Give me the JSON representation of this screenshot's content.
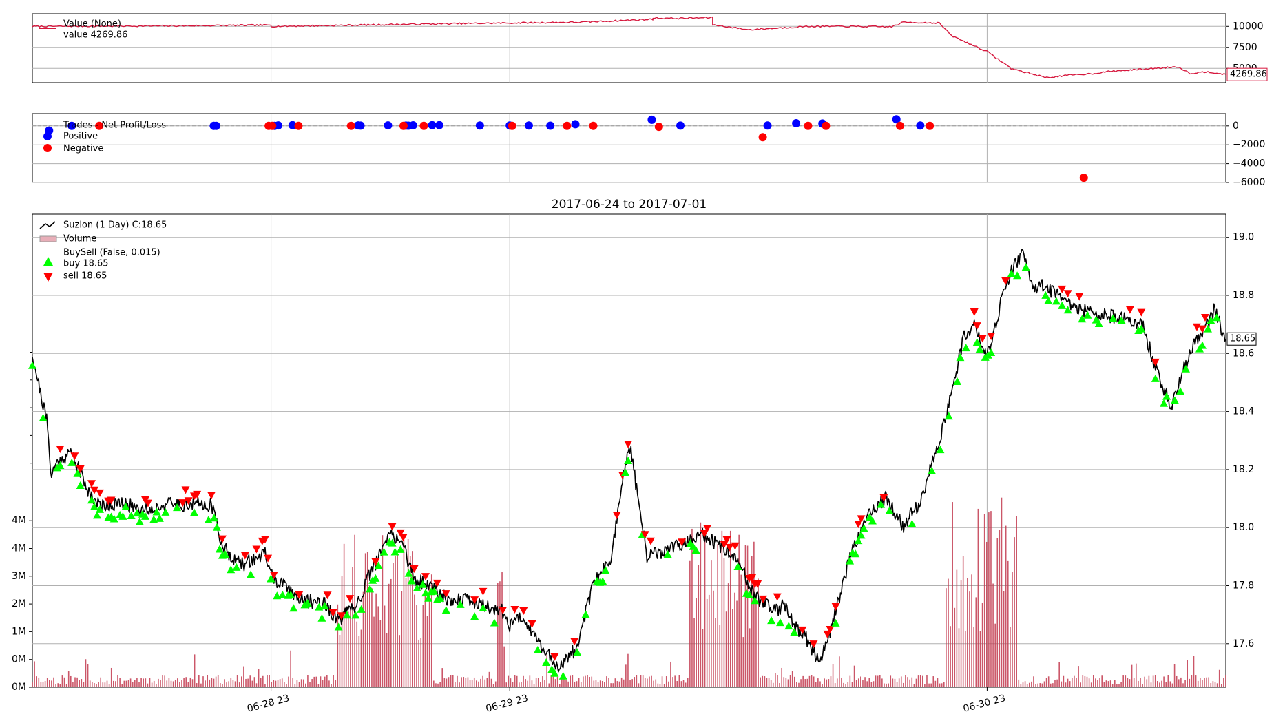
{
  "chart_data": [
    {
      "type": "line",
      "panel": "value",
      "legend": [
        {
          "label": "Value (None)",
          "color": "#d6173d"
        },
        {
          "label": "value 4269.86"
        }
      ],
      "ylim": [
        3300,
        11500
      ],
      "y_ticks": [
        10000,
        7500,
        5000
      ],
      "y_tick_labels": [
        "10000",
        "7500",
        "5000"
      ],
      "last_value_label": "4269.86",
      "grid": true,
      "series": [
        {
          "name": "Value (None)",
          "color": "#d6173d",
          "x": [
            0.0,
            0.1,
            0.2,
            0.2,
            0.34,
            0.4,
            0.46,
            0.52,
            0.52,
            0.54,
            0.57,
            0.57,
            0.6,
            0.65,
            0.68,
            0.72,
            0.73,
            0.76,
            0.77,
            0.8,
            0.82,
            0.83,
            0.85,
            0.87,
            0.89,
            0.9,
            0.92,
            0.93,
            0.96,
            0.97,
            0.985,
            1.0
          ],
          "y": [
            10000,
            10050,
            10150,
            10000,
            10300,
            10400,
            10500,
            10850,
            11000,
            10950,
            11050,
            10200,
            9600,
            10000,
            10000,
            9950,
            10500,
            10400,
            8900,
            7000,
            5000,
            4600,
            3900,
            4200,
            4400,
            4600,
            4800,
            4900,
            5200,
            4400,
            4600,
            4269.86
          ]
        }
      ]
    },
    {
      "type": "scatter",
      "panel": "trades",
      "legend": [
        {
          "label": "Trades - Net Profit/Loss"
        },
        {
          "label": "Positive",
          "color": "#0000ff"
        },
        {
          "label": "Negative",
          "color": "#ff0000"
        }
      ],
      "ylim": [
        -6000,
        1300
      ],
      "y_ticks": [
        0,
        -2000,
        -4000,
        -6000
      ],
      "y_tick_labels": [
        "0",
        "−2000",
        "−4000",
        "−6000"
      ],
      "grid": true,
      "series": [
        {
          "name": "Positive",
          "color": "#0000ff",
          "x": [
            0.014,
            0.033,
            0.152,
            0.154,
            0.203,
            0.206,
            0.218,
            0.273,
            0.275,
            0.298,
            0.313,
            0.315,
            0.319,
            0.335,
            0.341,
            0.375,
            0.4,
            0.416,
            0.434,
            0.455,
            0.519,
            0.543,
            0.616,
            0.64,
            0.662,
            0.724,
            0.744
          ],
          "y": [
            -500,
            0,
            0,
            0,
            0,
            50,
            80,
            50,
            30,
            50,
            30,
            20,
            60,
            80,
            80,
            40,
            40,
            40,
            20,
            180,
            650,
            30,
            40,
            280,
            250,
            700,
            40
          ]
        },
        {
          "name": "Negative",
          "color": "#ff0000",
          "x": [
            0.056,
            0.198,
            0.201,
            0.223,
            0.267,
            0.311,
            0.328,
            0.402,
            0.448,
            0.47,
            0.525,
            0.612,
            0.65,
            0.665,
            0.727,
            0.752,
            0.881
          ],
          "y": [
            0,
            0,
            0,
            0,
            0,
            0,
            0,
            0,
            0,
            0,
            -100,
            -1200,
            0,
            0,
            0,
            0,
            -5500
          ]
        }
      ]
    },
    {
      "type": "line",
      "panel": "price",
      "title": "2017-06-24 to 2017-07-01",
      "legend": [
        {
          "label": "Suzlon (1 Day) C:18.65",
          "color": "#000000"
        },
        {
          "label": "Volume",
          "color": "#e8aeb8"
        },
        {
          "label": "BuySell (False, 0.015)"
        },
        {
          "label": "buy 18.65",
          "color": "#00ff00"
        },
        {
          "label": "sell 18.65",
          "color": "#ff0000"
        }
      ],
      "ylim": [
        17.45,
        19.08
      ],
      "y_ticks": [
        17.6,
        17.8,
        18.0,
        18.2,
        18.4,
        18.6,
        18.8,
        19.0
      ],
      "y_tick_labels": [
        "17.6",
        "17.8",
        "18.0",
        "18.2",
        "18.4",
        "18.6",
        "18.8",
        "19.0"
      ],
      "x_tick_labels": [
        "06-28 23",
        "06-29 23",
        "06-30 23"
      ],
      "volume_y_tick_labels": [
        "0M",
        "0M",
        "1M",
        "2M",
        "3M",
        "4M",
        "4M"
      ],
      "last_value_label": "18.65",
      "grid": true,
      "series": [
        {
          "name": "Suzlon (1 Day) C:18.65",
          "color": "#000000",
          "x": [
            0.0,
            0.006,
            0.012,
            0.016,
            0.02,
            0.025,
            0.033,
            0.045,
            0.055,
            0.062,
            0.075,
            0.09,
            0.1,
            0.11,
            0.15,
            0.16,
            0.175,
            0.195,
            0.199,
            0.205,
            0.215,
            0.225,
            0.245,
            0.255,
            0.27,
            0.29,
            0.3,
            0.31,
            0.32,
            0.335,
            0.34,
            0.35,
            0.365,
            0.38,
            0.395,
            0.4,
            0.41,
            0.425,
            0.44,
            0.455,
            0.47,
            0.485,
            0.5,
            0.515,
            0.53,
            0.545,
            0.56,
            0.575,
            0.585,
            0.595,
            0.6,
            0.61,
            0.62,
            0.625,
            0.63,
            0.636,
            0.64,
            0.646,
            0.65,
            0.66,
            0.67,
            0.685,
            0.7,
            0.715,
            0.73,
            0.745,
            0.76,
            0.775,
            0.78,
            0.79,
            0.8,
            0.805,
            0.81,
            0.812,
            0.818,
            0.822,
            0.826,
            0.83,
            0.835,
            0.84,
            0.846,
            0.852,
            0.858,
            0.866,
            0.875,
            0.885,
            0.9,
            0.915,
            0.93,
            0.945,
            0.955,
            0.965,
            0.975,
            0.985,
            0.99,
            1.0
          ],
          "y": [
            18.6,
            18.48,
            18.37,
            18.18,
            18.22,
            18.24,
            18.26,
            18.14,
            18.08,
            18.08,
            18.08,
            18.07,
            18.06,
            18.08,
            18.08,
            17.93,
            17.87,
            17.91,
            17.85,
            17.81,
            17.79,
            17.75,
            17.74,
            17.68,
            17.72,
            17.9,
            17.98,
            17.95,
            17.82,
            17.8,
            17.78,
            17.75,
            17.75,
            17.73,
            17.71,
            17.66,
            17.7,
            17.6,
            17.52,
            17.58,
            17.8,
            17.9,
            18.3,
            17.9,
            17.92,
            17.94,
            17.98,
            17.94,
            17.9,
            17.86,
            17.8,
            17.75,
            17.73,
            17.72,
            17.73,
            17.68,
            17.66,
            17.63,
            17.61,
            17.53,
            17.66,
            17.9,
            18.05,
            18.1,
            18.0,
            18.1,
            18.3,
            18.55,
            18.65,
            18.7,
            18.6,
            18.66,
            18.75,
            18.8,
            18.85,
            18.9,
            18.92,
            18.94,
            18.88,
            18.82,
            18.83,
            18.82,
            18.8,
            18.78,
            18.76,
            18.74,
            18.73,
            18.72,
            18.7,
            18.5,
            18.42,
            18.55,
            18.65,
            18.7,
            18.75,
            18.65
          ]
        }
      ]
    }
  ]
}
